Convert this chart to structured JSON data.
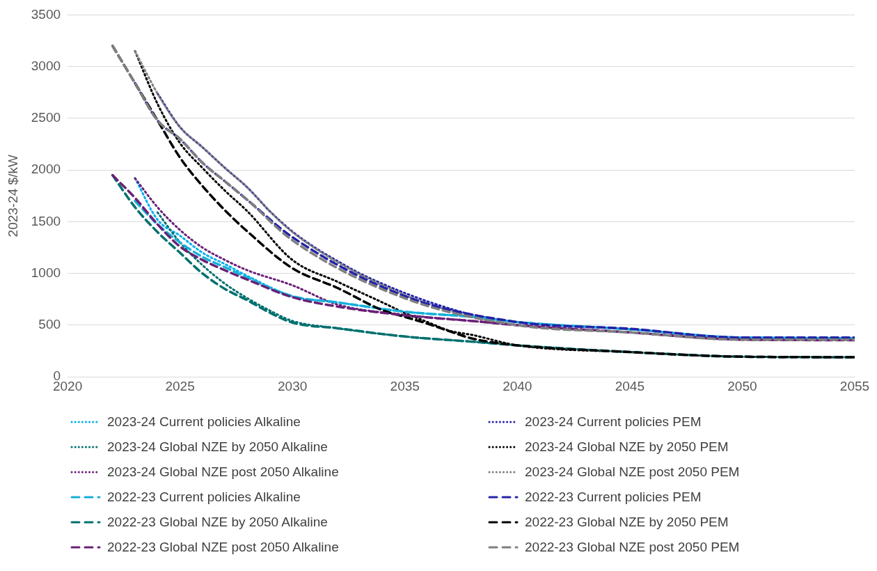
{
  "chart_data": {
    "type": "line",
    "ylabel": "2023-24 $/kW",
    "xlim": [
      2020,
      2055
    ],
    "xticks": [
      2020,
      2025,
      2030,
      2035,
      2040,
      2045,
      2050,
      2055
    ],
    "ylim": [
      0,
      3500
    ],
    "yticks": [
      0,
      500,
      1000,
      1500,
      2000,
      2500,
      3000,
      3500
    ],
    "grid": "y",
    "legend": "bottom",
    "marker": "none",
    "series": [
      {
        "name": "2023-24 Current policies Alkaline",
        "color": "#00b0f0",
        "line_style": "dotted",
        "x": [
          2023,
          2024,
          2025,
          2026,
          2027,
          2028,
          2030,
          2032,
          2035,
          2038,
          2040,
          2045,
          2050,
          2055
        ],
        "values": [
          1920,
          1520,
          1365,
          1200,
          1090,
          975,
          780,
          720,
          630,
          580,
          530,
          460,
          380,
          375
        ]
      },
      {
        "name": "2023-24 Current policies PEM",
        "color": "#2323a8",
        "line_style": "dotted",
        "x": [
          2024,
          2025,
          2026,
          2027,
          2028,
          2029,
          2030,
          2031,
          2032,
          2033,
          2034,
          2035,
          2036,
          2037,
          2038,
          2039,
          2040,
          2045,
          2050,
          2055
        ],
        "values": [
          2740,
          2415,
          2220,
          2020,
          1830,
          1600,
          1405,
          1250,
          1120,
          1000,
          900,
          810,
          730,
          660,
          600,
          560,
          530,
          460,
          380,
          375
        ]
      },
      {
        "name": "2023-24 Global NZE by 2050 Alkaline",
        "color": "#007070",
        "line_style": "dotted",
        "x": [
          2024,
          2025,
          2026,
          2027,
          2028,
          2029,
          2030,
          2032,
          2035,
          2038,
          2040,
          2045,
          2050,
          2055
        ],
        "values": [
          1590,
          1300,
          1080,
          900,
          760,
          640,
          540,
          470,
          390,
          340,
          305,
          240,
          195,
          190
        ]
      },
      {
        "name": "2023-24 Global NZE by 2050 PEM",
        "color": "#000000",
        "line_style": "dotted",
        "x": [
          2023,
          2024,
          2025,
          2026,
          2027,
          2028,
          2030,
          2032,
          2034,
          2035,
          2036,
          2037,
          2038,
          2040,
          2045,
          2050,
          2055
        ],
        "values": [
          3150,
          2640,
          2260,
          2020,
          1800,
          1600,
          1130,
          920,
          720,
          617,
          530,
          445,
          405,
          305,
          240,
          195,
          190
        ]
      },
      {
        "name": "2023-24 Global NZE post 2050 Alkaline",
        "color": "#6a2077",
        "line_style": "dotted",
        "x": [
          2023,
          2024,
          2025,
          2026,
          2027,
          2028,
          2030,
          2032,
          2035,
          2038,
          2040,
          2045,
          2050,
          2055
        ],
        "values": [
          1920,
          1640,
          1420,
          1250,
          1130,
          1030,
          885,
          700,
          600,
          540,
          500,
          430,
          360,
          355
        ]
      },
      {
        "name": "2023-24 Global NZE post 2050 PEM",
        "color": "#7f7f7f",
        "line_style": "dotted",
        "x": [
          2023,
          2024,
          2025,
          2026,
          2027,
          2028,
          2029,
          2030,
          2032,
          2035,
          2038,
          2040,
          2045,
          2050,
          2055
        ],
        "values": [
          3150,
          2740,
          2415,
          2220,
          2020,
          1830,
          1600,
          1400,
          1110,
          790,
          580,
          500,
          430,
          360,
          355
        ]
      },
      {
        "name": "2022-23 Current policies Alkaline",
        "color": "#16b0d8",
        "line_style": "dashed",
        "x": [
          2023,
          2024,
          2025,
          2026,
          2027,
          2028,
          2030,
          2032,
          2035,
          2038,
          2040,
          2045,
          2050,
          2055
        ],
        "values": [
          1700,
          1475,
          1300,
          1160,
          1060,
          960,
          780,
          720,
          630,
          580,
          530,
          460,
          380,
          375
        ]
      },
      {
        "name": "2022-23 Current policies PEM",
        "color": "#2323a8",
        "line_style": "dashed",
        "x": [
          2023,
          2024,
          2025,
          2026,
          2027,
          2028,
          2030,
          2035,
          2040,
          2045,
          2050,
          2055
        ],
        "values": [
          2840,
          2480,
          2300,
          2070,
          1890,
          1710,
          1350,
          780,
          530,
          465,
          380,
          380
        ]
      },
      {
        "name": "2022-23 Global NZE by 2050 Alkaline",
        "color": "#007070",
        "line_style": "dashed",
        "x": [
          2022,
          2023,
          2024,
          2025,
          2026,
          2027,
          2028,
          2029,
          2030,
          2032,
          2035,
          2038,
          2040,
          2045,
          2050,
          2055
        ],
        "values": [
          1950,
          1640,
          1400,
          1200,
          1000,
          850,
          740,
          620,
          525,
          470,
          390,
          340,
          305,
          240,
          195,
          190
        ]
      },
      {
        "name": "2022-23 Global NZE by 2050 PEM",
        "color": "#000000",
        "line_style": "dashed",
        "x": [
          2022,
          2023,
          2024,
          2025,
          2026,
          2027,
          2028,
          2030,
          2032,
          2034,
          2035,
          2036,
          2037,
          2038,
          2040,
          2045,
          2050,
          2055
        ],
        "values": [
          3200,
          2840,
          2480,
          2120,
          1845,
          1610,
          1405,
          1050,
          860,
          645,
          580,
          515,
          440,
          370,
          305,
          240,
          195,
          190
        ]
      },
      {
        "name": "2022-23 Global NZE post 2050 Alkaline",
        "color": "#6a2077",
        "line_style": "dashed",
        "x": [
          2022,
          2023,
          2024,
          2025,
          2026,
          2027,
          2028,
          2030,
          2032,
          2035,
          2038,
          2040,
          2045,
          2050,
          2055
        ],
        "values": [
          1950,
          1730,
          1475,
          1260,
          1130,
          1030,
          940,
          770,
          680,
          595,
          540,
          500,
          430,
          360,
          355
        ]
      },
      {
        "name": "2022-23 Global NZE post 2050 PEM",
        "color": "#7f7f7f",
        "line_style": "dashed",
        "x": [
          2022,
          2023,
          2024,
          2025,
          2026,
          2027,
          2028,
          2030,
          2035,
          2040,
          2045,
          2050,
          2055
        ],
        "values": [
          3200,
          2840,
          2480,
          2300,
          2070,
          1890,
          1710,
          1320,
          760,
          500,
          430,
          360,
          360
        ]
      }
    ]
  }
}
